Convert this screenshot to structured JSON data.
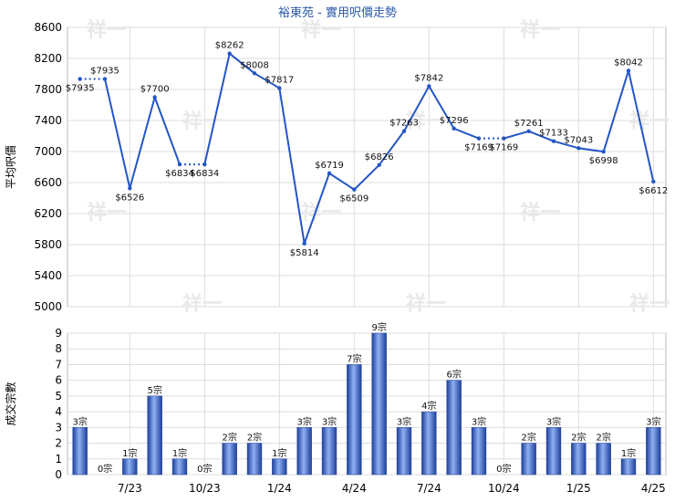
{
  "title": "裕東苑 - 實用呎價走勢",
  "chart_data": [
    {
      "type": "line",
      "ylabel": "平均呎價",
      "ylim": [
        5000,
        8600
      ],
      "yticks": [
        5000,
        5400,
        5800,
        6200,
        6600,
        7000,
        7400,
        7800,
        8200,
        8600
      ],
      "values": [
        7935,
        7935,
        6526,
        7700,
        6834,
        6834,
        8262,
        8008,
        7817,
        5814,
        6719,
        6509,
        6826,
        7263,
        7842,
        7296,
        7169,
        7169,
        7261,
        7133,
        7043,
        6998,
        8042,
        6612
      ],
      "labels": [
        "$7935",
        "$7935",
        "$6526",
        "$7700",
        "$6834",
        "$6834",
        "$8262",
        "$8008",
        "$7817",
        "$5814",
        "$6719",
        "$6509",
        "$6826",
        "$7263",
        "$7842",
        "$7296",
        "$7169",
        "$7169",
        "$7261",
        "$7133",
        "$7043",
        "$6998",
        "$8042",
        "$6612"
      ],
      "dotted_segments": [
        [
          0,
          1
        ],
        [
          4,
          5
        ],
        [
          16,
          17
        ]
      ]
    },
    {
      "type": "bar",
      "ylabel": "成交宗數",
      "ylim": [
        0,
        9
      ],
      "yticks": [
        0,
        1,
        2,
        3,
        4,
        5,
        6,
        7,
        8,
        9
      ],
      "values": [
        3,
        0,
        1,
        5,
        1,
        0,
        2,
        2,
        1,
        3,
        3,
        7,
        9,
        3,
        4,
        6,
        3,
        0,
        2,
        3,
        2,
        2,
        1,
        3
      ],
      "labels": [
        "3宗",
        "0宗",
        "1宗",
        "5宗",
        "1宗",
        "0宗",
        "2宗",
        "2宗",
        "1宗",
        "3宗",
        "3宗",
        "7宗",
        "9宗",
        "3宗",
        "4宗",
        "6宗",
        "3宗",
        "0宗",
        "2宗",
        "3宗",
        "2宗",
        "2宗",
        "1宗",
        "3宗"
      ],
      "xtick_labels": [
        "7/23",
        "10/23",
        "1/24",
        "4/24",
        "7/24",
        "10/24",
        "1/25",
        "4/25"
      ],
      "xtick_indices": [
        2,
        5,
        8,
        11,
        14,
        17,
        20,
        23
      ]
    }
  ],
  "watermark": "祥一"
}
